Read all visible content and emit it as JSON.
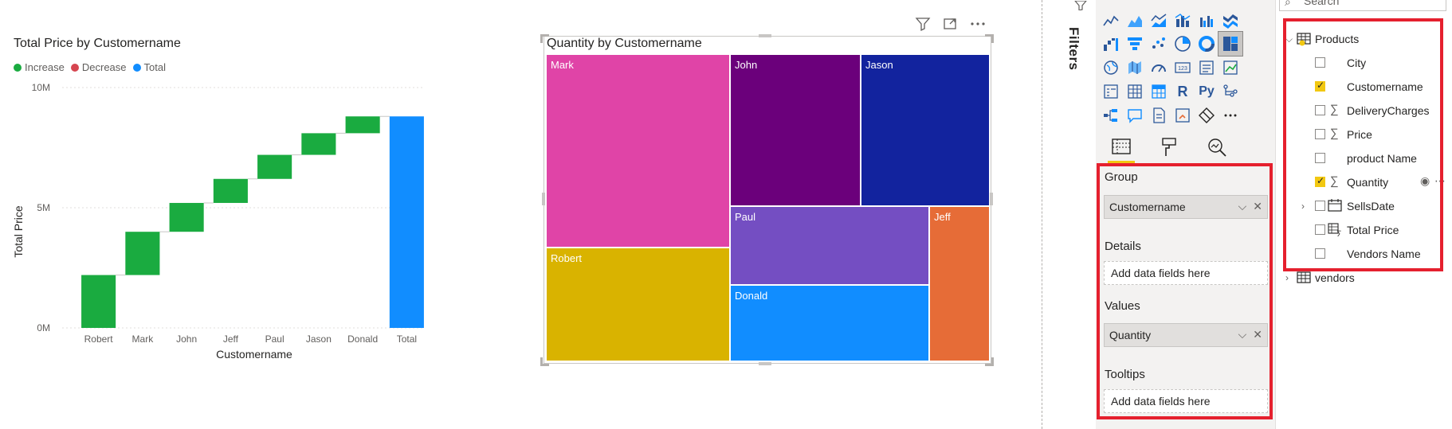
{
  "waterfall": {
    "title": "Total Price by Customername",
    "legend": [
      {
        "label": "Increase",
        "color": "#1aab40"
      },
      {
        "label": "Decrease",
        "color": "#d64550"
      },
      {
        "label": "Total",
        "color": "#118dff"
      }
    ],
    "ylabel": "Total Price",
    "xlabel": "Customername",
    "yticks": [
      "10M",
      "5M",
      "0M"
    ]
  },
  "chart_data": [
    {
      "type": "bar",
      "subtype": "waterfall",
      "title": "Total Price by Customername",
      "xlabel": "Customername",
      "ylabel": "Total Price",
      "ylim": [
        0,
        10000000
      ],
      "categories": [
        "Robert",
        "Mark",
        "John",
        "Jeff",
        "Paul",
        "Jason",
        "Donald",
        "Total"
      ],
      "values": [
        2200000,
        1800000,
        1200000,
        1000000,
        1000000,
        900000,
        700000,
        8800000
      ],
      "grid": true,
      "legend_position": "top-left"
    },
    {
      "type": "treemap",
      "title": "Quantity by Customername",
      "categories": [
        "Mark",
        "John",
        "Jason",
        "Robert",
        "Paul",
        "Donald",
        "Jeff"
      ],
      "values": [
        25,
        17,
        17,
        18,
        12,
        11,
        8
      ],
      "colors": [
        "#e044a7",
        "#6b007b",
        "#12239e",
        "#d9b300",
        "#744ec2",
        "#118dff",
        "#e66c37"
      ]
    }
  ],
  "treemap": {
    "title": "Quantity by Customername",
    "tiles": [
      {
        "label": "Mark",
        "color": "#e044a7"
      },
      {
        "label": "John",
        "color": "#6b007b"
      },
      {
        "label": "Jason",
        "color": "#12239e"
      },
      {
        "label": "Robert",
        "color": "#d9b300"
      },
      {
        "label": "Paul",
        "color": "#744ec2"
      },
      {
        "label": "Donald",
        "color": "#118dff"
      },
      {
        "label": "Jeff",
        "color": "#e66c37"
      }
    ],
    "header_icons": [
      "filter-icon",
      "focus-mode-icon",
      "more-options-icon"
    ]
  },
  "filters": {
    "label": "Filters"
  },
  "visualizations": {
    "icons": [
      "stacked-bar-icon",
      "stacked-column-icon",
      "clustered-bar-icon",
      "clustered-column-icon",
      "100pct-bar-icon",
      "100pct-column-icon",
      "line-chart-icon",
      "area-chart-icon",
      "stacked-area-icon",
      "line-column-icon",
      "line-clustered-column-icon",
      "ribbon-chart-icon",
      "waterfall-icon",
      "funnel-icon",
      "scatter-icon",
      "pie-icon",
      "donut-icon",
      "treemap-icon",
      "map-icon",
      "filled-map-icon",
      "azure-map-icon",
      "gauge-icon",
      "card-icon",
      "multi-row-card-icon",
      "kpi-icon",
      "slicer-icon",
      "table-icon",
      "matrix-icon",
      "r-visual-icon",
      "python-visual-icon",
      "key-influencers-icon",
      "decomposition-tree-icon",
      "qna-icon",
      "smart-narrative-icon",
      "paginated-report-icon",
      "power-apps-icon",
      "power-automate-icon",
      "more-visuals-icon"
    ],
    "r_label": "R",
    "py_label": "Py",
    "tabs": [
      "build-visual-icon",
      "format-visual-icon",
      "analytics-icon"
    ],
    "wells": {
      "group_label": "Group",
      "group_field": "Customername",
      "details_label": "Details",
      "details_placeholder": "Add data fields here",
      "values_label": "Values",
      "values_field": "Quantity",
      "tooltips_label": "Tooltips",
      "tooltips_placeholder": "Add data fields here"
    }
  },
  "fields": {
    "search_placeholder": "Search",
    "tables": [
      {
        "name": "Products",
        "expanded": true
      },
      {
        "name": "vendors",
        "expanded": false
      }
    ],
    "products_fields": [
      {
        "name": "City",
        "checked": false,
        "type": "text"
      },
      {
        "name": "Customername",
        "checked": true,
        "type": "text"
      },
      {
        "name": "DeliveryCharges",
        "checked": false,
        "type": "sum"
      },
      {
        "name": "Price",
        "checked": false,
        "type": "sum"
      },
      {
        "name": "product Name",
        "checked": false,
        "type": "text"
      },
      {
        "name": "Quantity",
        "checked": true,
        "type": "sum"
      },
      {
        "name": "SellsDate",
        "checked": false,
        "type": "date"
      },
      {
        "name": "Total Price",
        "checked": false,
        "type": "measure"
      },
      {
        "name": "Vendors Name",
        "checked": false,
        "type": "text"
      }
    ]
  }
}
